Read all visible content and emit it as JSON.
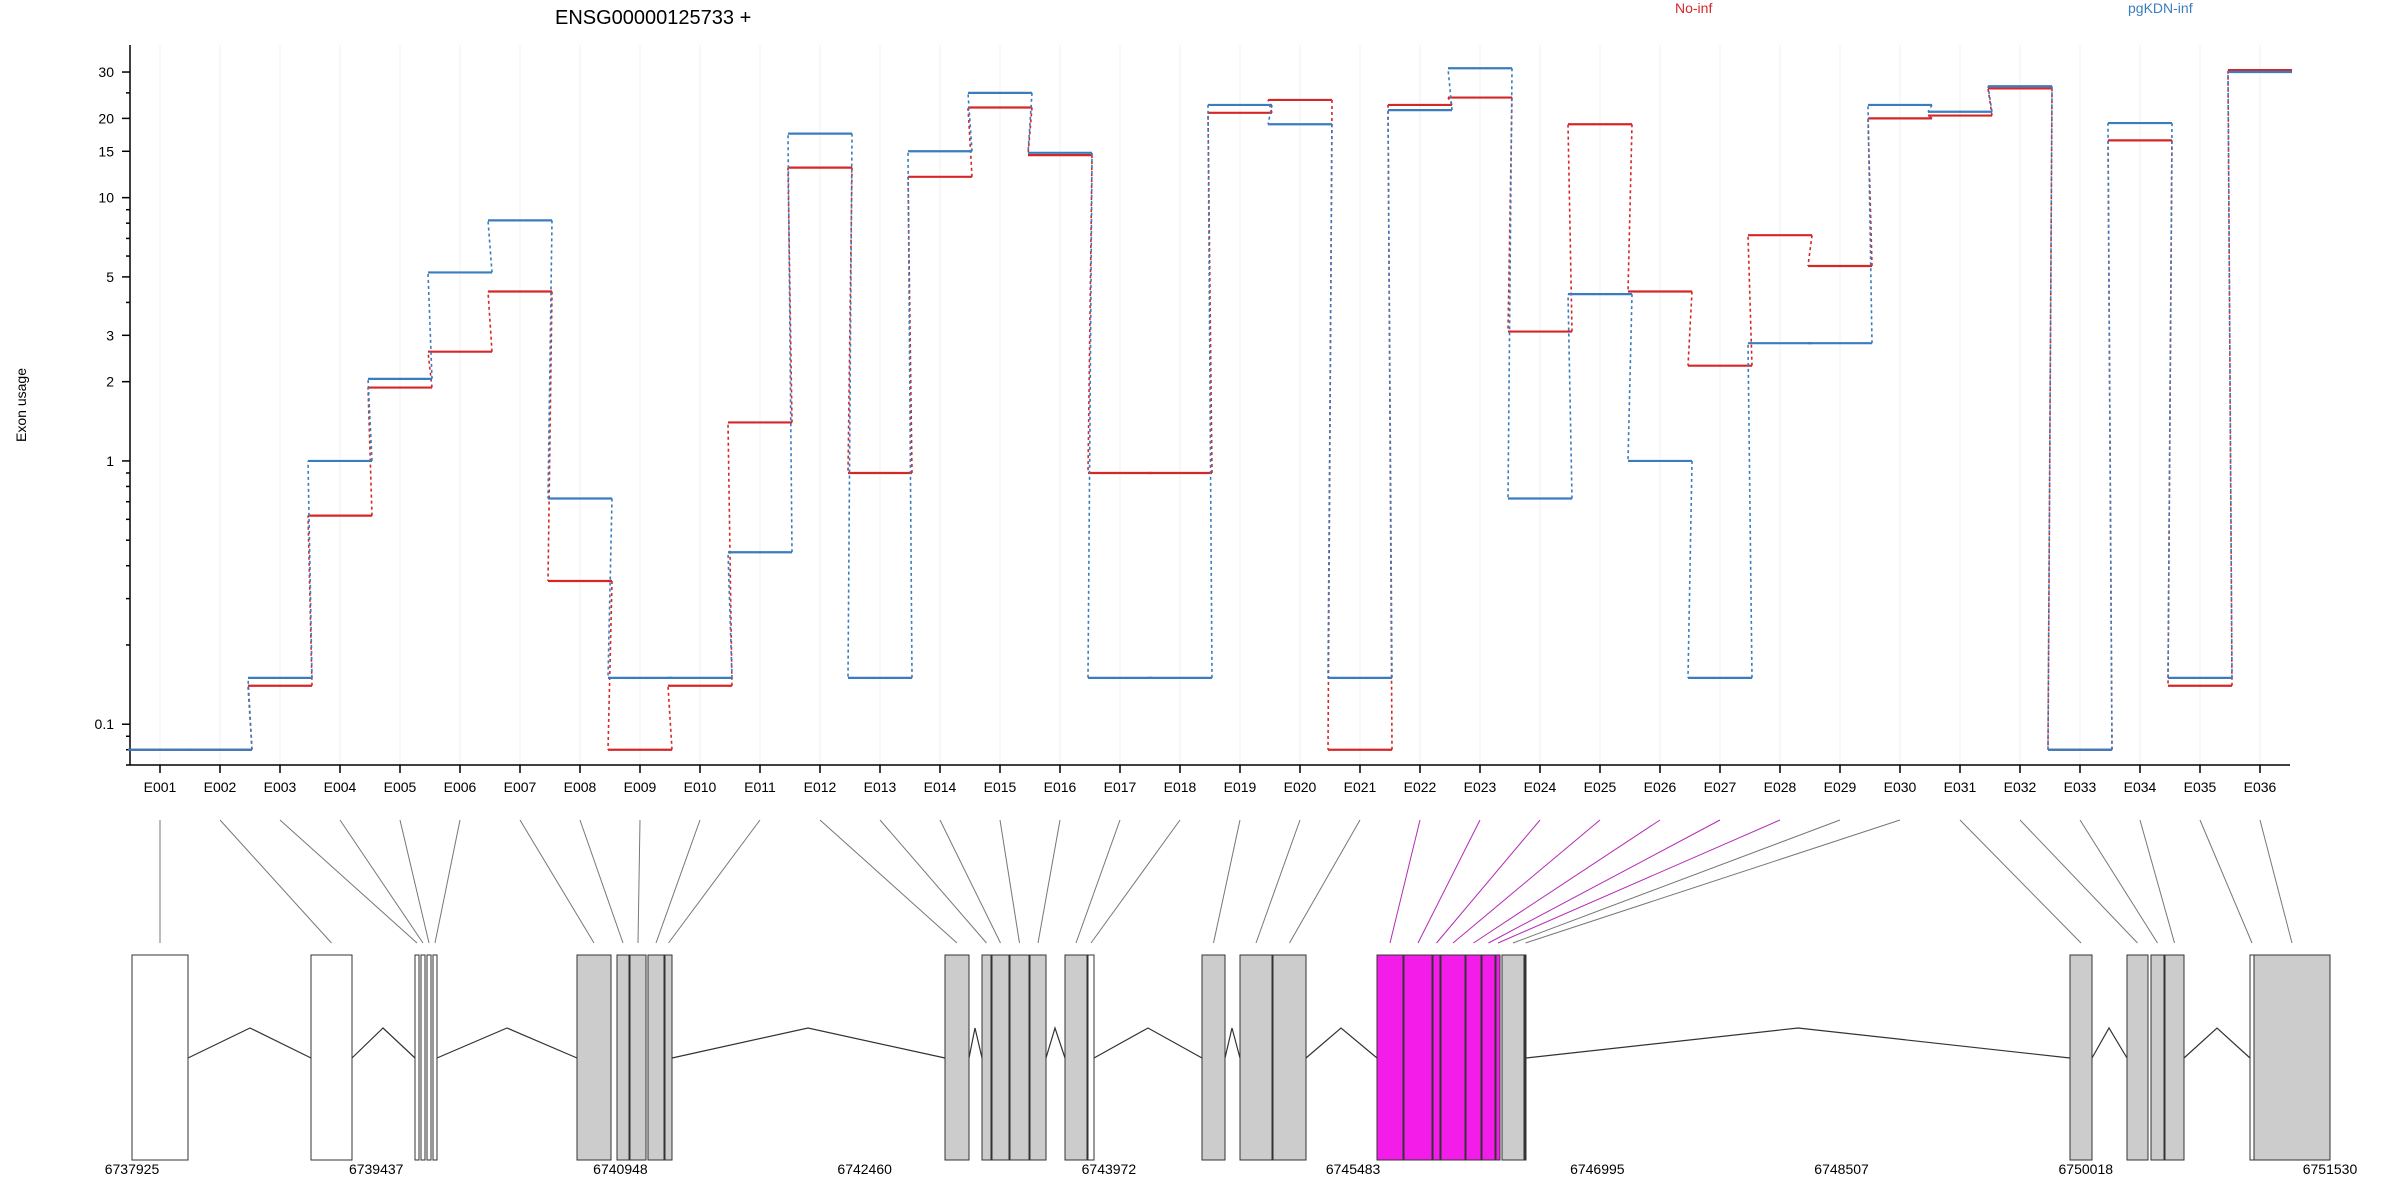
{
  "chart_data": {
    "type": "line",
    "title": "ENSG00000125733 +",
    "ylabel": "Exon usage",
    "yscale": "log",
    "ylim": [
      0.07,
      38
    ],
    "yticks": [
      {
        "value": 0.1,
        "label": "0.1"
      },
      {
        "value": 1,
        "label": "1"
      },
      {
        "value": 2,
        "label": "2"
      },
      {
        "value": 3,
        "label": "3"
      },
      {
        "value": 5,
        "label": "5"
      },
      {
        "value": 10,
        "label": "10"
      },
      {
        "value": 15,
        "label": "15"
      },
      {
        "value": 20,
        "label": "20"
      },
      {
        "value": 30,
        "label": "30"
      }
    ],
    "grid": true,
    "legend_position": "top",
    "categories": [
      "E001",
      "E002",
      "E003",
      "E004",
      "E005",
      "E006",
      "E007",
      "E008",
      "E009",
      "E010",
      "E011",
      "E012",
      "E013",
      "E014",
      "E015",
      "E016",
      "E017",
      "E018",
      "E019",
      "E020",
      "E021",
      "E022",
      "E023",
      "E024",
      "E025",
      "E026",
      "E027",
      "E028",
      "E029",
      "E030",
      "E031",
      "E032",
      "E033",
      "E034",
      "E035",
      "E036"
    ],
    "series": [
      {
        "name": "No-inf",
        "color": "#d62728",
        "values": [
          0.08,
          0.08,
          0.14,
          0.62,
          1.9,
          2.6,
          4.4,
          0.35,
          0.08,
          0.14,
          1.4,
          13,
          0.9,
          12,
          22,
          14.5,
          0.9,
          0.9,
          21,
          23.5,
          0.08,
          22.5,
          24,
          3.1,
          19,
          4.4,
          2.3,
          7.2,
          5.5,
          20,
          20.5,
          26,
          0.08,
          16.5,
          0.14,
          30.5
        ]
      },
      {
        "name": "pgKDN-inf",
        "color": "#3a7dbf",
        "values": [
          0.08,
          0.08,
          0.15,
          1.0,
          2.05,
          5.2,
          8.2,
          0.72,
          0.15,
          0.15,
          0.45,
          17.5,
          0.15,
          15,
          25,
          14.8,
          0.15,
          0.15,
          22.5,
          19,
          0.15,
          21.5,
          31,
          0.72,
          4.3,
          1.0,
          0.15,
          2.8,
          2.8,
          22.5,
          21.2,
          26.5,
          0.08,
          19.2,
          0.15,
          30
        ]
      }
    ],
    "gene_model": {
      "coordinate_ticks": [
        "6737925",
        "6739437",
        "6740948",
        "6742460",
        "6743972",
        "6745483",
        "6746995",
        "6748507",
        "6750018",
        "6751530"
      ],
      "highlight_color": "#f41ce8",
      "exon_color": "#cccccc",
      "highlighted_exons": [
        "E022",
        "E023",
        "E024",
        "E025",
        "E026",
        "E027",
        "E028"
      ]
    }
  }
}
